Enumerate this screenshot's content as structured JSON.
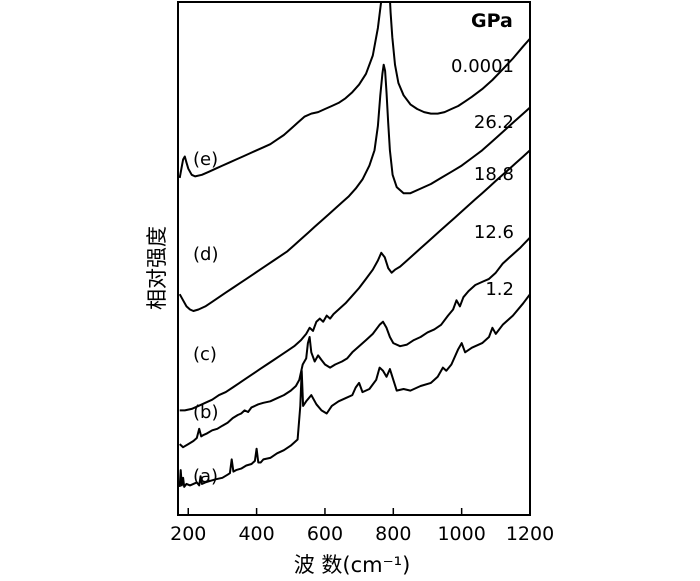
{
  "chart_data": {
    "type": "line",
    "title": "",
    "xlabel": "波 数(cm⁻¹)",
    "ylabel": "相对强度",
    "xlim": [
      170,
      1200
    ],
    "xticks": [
      200,
      400,
      600,
      800,
      1000,
      1200
    ],
    "xtick_labels": [
      "200",
      "400",
      "600",
      "800",
      "1000",
      "1200"
    ],
    "yticks_shown": false,
    "unit_label": "GPa",
    "series": [
      {
        "name": "(a)",
        "pressure": "1.2",
        "x": [
          175,
          178,
          181,
          185,
          188,
          195,
          205,
          215,
          225,
          232,
          236,
          240,
          250,
          265,
          280,
          300,
          315,
          322,
          327,
          332,
          340,
          355,
          370,
          385,
          395,
          400,
          405,
          412,
          420,
          440,
          460,
          480,
          500,
          520,
          528,
          532,
          536,
          545,
          560,
          575,
          590,
          605,
          620,
          640,
          660,
          680,
          690,
          700,
          710,
          730,
          750,
          760,
          770,
          780,
          790,
          800,
          810,
          830,
          850,
          880,
          910,
          930,
          945,
          955,
          970,
          990,
          1000,
          1010,
          1030,
          1060,
          1080,
          1090,
          1100,
          1120,
          1150,
          1180,
          1200
        ],
        "y": [
          0.02,
          0.13,
          0.03,
          0.08,
          0.02,
          0.04,
          0.03,
          0.04,
          0.05,
          0.03,
          0.09,
          0.04,
          0.05,
          0.06,
          0.07,
          0.08,
          0.1,
          0.11,
          0.2,
          0.12,
          0.13,
          0.14,
          0.16,
          0.17,
          0.19,
          0.27,
          0.18,
          0.18,
          0.2,
          0.21,
          0.24,
          0.26,
          0.29,
          0.33,
          0.55,
          0.78,
          0.55,
          0.58,
          0.62,
          0.56,
          0.52,
          0.5,
          0.55,
          0.58,
          0.6,
          0.62,
          0.67,
          0.7,
          0.64,
          0.66,
          0.72,
          0.8,
          0.78,
          0.74,
          0.79,
          0.72,
          0.65,
          0.66,
          0.65,
          0.68,
          0.7,
          0.74,
          0.8,
          0.78,
          0.82,
          0.92,
          0.96,
          0.9,
          0.93,
          0.96,
          1.0,
          1.06,
          1.02,
          1.08,
          1.14,
          1.22,
          1.28
        ]
      },
      {
        "name": "(b)",
        "pressure": "12.6",
        "x": [
          175,
          185,
          200,
          215,
          225,
          232,
          238,
          245,
          255,
          270,
          285,
          300,
          315,
          330,
          345,
          355,
          365,
          375,
          385,
          395,
          405,
          420,
          440,
          460,
          480,
          500,
          515,
          525,
          535,
          545,
          550,
          555,
          560,
          570,
          580,
          590,
          600,
          615,
          630,
          650,
          665,
          680,
          700,
          720,
          740,
          760,
          770,
          780,
          790,
          800,
          820,
          840,
          860,
          880,
          900,
          920,
          940,
          960,
          975,
          985,
          995,
          1005,
          1020,
          1040,
          1060,
          1080,
          1100,
          1120,
          1140,
          1170,
          1200
        ],
        "y": [
          0.3,
          0.28,
          0.3,
          0.32,
          0.34,
          0.4,
          0.35,
          0.36,
          0.37,
          0.39,
          0.4,
          0.42,
          0.44,
          0.47,
          0.49,
          0.5,
          0.52,
          0.51,
          0.54,
          0.55,
          0.56,
          0.57,
          0.58,
          0.6,
          0.62,
          0.65,
          0.68,
          0.72,
          0.82,
          0.86,
          0.96,
          1.0,
          0.9,
          0.84,
          0.88,
          0.85,
          0.82,
          0.8,
          0.82,
          0.84,
          0.86,
          0.9,
          0.94,
          0.98,
          1.02,
          1.08,
          1.1,
          1.06,
          1.0,
          0.96,
          0.94,
          0.95,
          0.98,
          1.0,
          1.03,
          1.05,
          1.08,
          1.14,
          1.18,
          1.24,
          1.2,
          1.26,
          1.3,
          1.34,
          1.36,
          1.38,
          1.42,
          1.48,
          1.52,
          1.58,
          1.65
        ]
      },
      {
        "name": "(c)",
        "pressure": "18.8",
        "x": [
          175,
          190,
          210,
          230,
          250,
          270,
          290,
          310,
          330,
          350,
          370,
          390,
          410,
          430,
          450,
          470,
          490,
          510,
          530,
          545,
          555,
          565,
          575,
          585,
          595,
          605,
          615,
          625,
          640,
          660,
          680,
          700,
          720,
          740,
          755,
          765,
          775,
          785,
          795,
          805,
          820,
          840,
          860,
          880,
          900,
          920,
          940,
          960,
          980,
          1000,
          1020,
          1040,
          1060,
          1080,
          1100,
          1120,
          1140,
          1160,
          1180,
          1200
        ],
        "y": [
          0.52,
          0.52,
          0.53,
          0.55,
          0.57,
          0.59,
          0.62,
          0.64,
          0.67,
          0.7,
          0.73,
          0.76,
          0.79,
          0.82,
          0.85,
          0.88,
          0.91,
          0.94,
          0.98,
          1.02,
          1.06,
          1.04,
          1.1,
          1.12,
          1.1,
          1.14,
          1.12,
          1.15,
          1.18,
          1.22,
          1.27,
          1.32,
          1.38,
          1.44,
          1.5,
          1.55,
          1.52,
          1.45,
          1.42,
          1.44,
          1.46,
          1.5,
          1.54,
          1.58,
          1.62,
          1.66,
          1.7,
          1.74,
          1.78,
          1.82,
          1.86,
          1.9,
          1.94,
          1.98,
          2.02,
          2.06,
          2.1,
          2.14,
          2.18,
          2.22
        ]
      },
      {
        "name": "(d)",
        "pressure": "26.2",
        "x": [
          175,
          185,
          195,
          205,
          215,
          230,
          250,
          270,
          290,
          310,
          330,
          350,
          370,
          390,
          410,
          430,
          450,
          470,
          490,
          510,
          530,
          550,
          570,
          590,
          610,
          630,
          650,
          670,
          690,
          710,
          730,
          745,
          755,
          762,
          768,
          772,
          776,
          780,
          785,
          790,
          798,
          810,
          830,
          850,
          880,
          910,
          940,
          970,
          1000,
          1030,
          1060,
          1090,
          1120,
          1150,
          1180,
          1200
        ],
        "y": [
          1.28,
          1.24,
          1.2,
          1.18,
          1.17,
          1.18,
          1.2,
          1.23,
          1.26,
          1.29,
          1.32,
          1.35,
          1.38,
          1.41,
          1.44,
          1.47,
          1.5,
          1.53,
          1.56,
          1.6,
          1.64,
          1.68,
          1.72,
          1.76,
          1.8,
          1.84,
          1.88,
          1.92,
          1.97,
          2.03,
          2.12,
          2.22,
          2.38,
          2.58,
          2.72,
          2.78,
          2.74,
          2.6,
          2.4,
          2.22,
          2.06,
          1.98,
          1.94,
          1.94,
          1.97,
          2.0,
          2.04,
          2.08,
          2.12,
          2.17,
          2.22,
          2.28,
          2.34,
          2.4,
          2.46,
          2.5
        ]
      },
      {
        "name": "(e)",
        "pressure": "0.0001",
        "x": [
          175,
          180,
          185,
          190,
          195,
          200,
          210,
          220,
          240,
          260,
          280,
          300,
          320,
          340,
          360,
          380,
          400,
          420,
          440,
          460,
          480,
          500,
          520,
          540,
          560,
          580,
          600,
          620,
          640,
          660,
          680,
          700,
          720,
          740,
          755,
          765,
          772,
          778,
          783,
          788,
          792,
          797,
          805,
          815,
          830,
          850,
          870,
          890,
          910,
          930,
          950,
          970,
          990,
          1010,
          1030,
          1060,
          1090,
          1120,
          1150,
          1180,
          1200
        ],
        "y": [
          2.04,
          2.1,
          2.16,
          2.18,
          2.14,
          2.1,
          2.06,
          2.05,
          2.06,
          2.08,
          2.1,
          2.12,
          2.14,
          2.16,
          2.18,
          2.2,
          2.22,
          2.24,
          2.26,
          2.29,
          2.32,
          2.36,
          2.4,
          2.44,
          2.46,
          2.47,
          2.49,
          2.51,
          2.53,
          2.56,
          2.6,
          2.65,
          2.72,
          2.84,
          3.02,
          3.2,
          3.38,
          3.45,
          3.42,
          3.3,
          3.12,
          2.96,
          2.78,
          2.66,
          2.58,
          2.52,
          2.49,
          2.47,
          2.46,
          2.46,
          2.47,
          2.49,
          2.51,
          2.54,
          2.57,
          2.62,
          2.68,
          2.75,
          2.82,
          2.9,
          2.95
        ]
      }
    ]
  }
}
